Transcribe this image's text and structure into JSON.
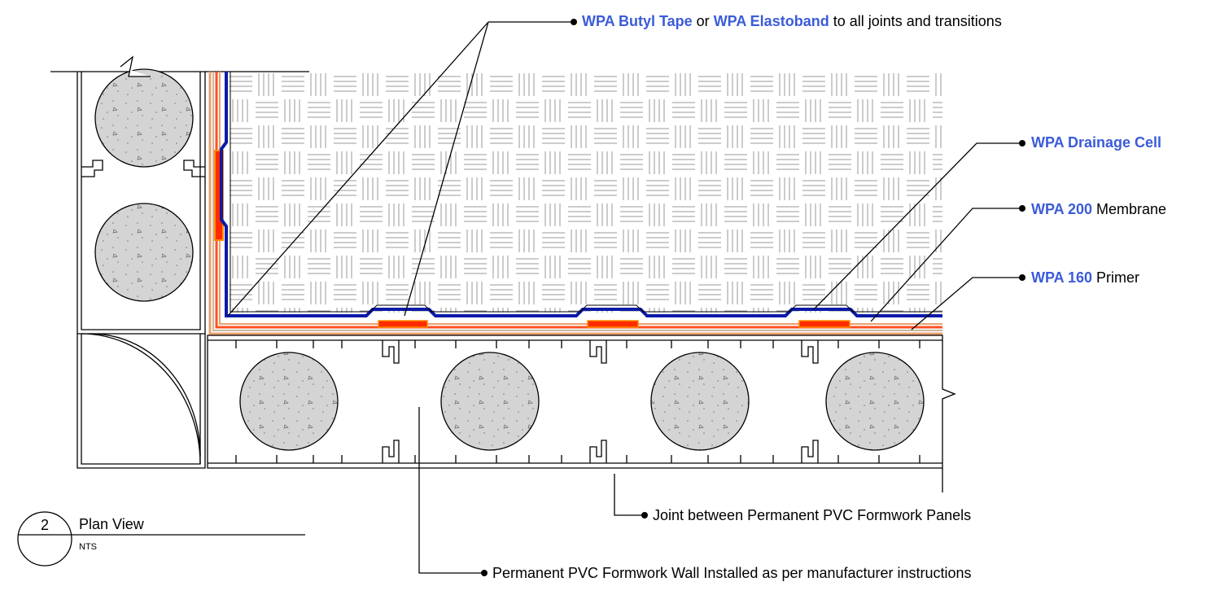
{
  "callouts": [
    {
      "segments": [
        {
          "text": "WPA Butyl Tape",
          "style": "product"
        },
        {
          "text": " or "
        },
        {
          "text": "WPA Elastoband",
          "style": "product"
        },
        {
          "text": " to all joints and transitions"
        }
      ]
    },
    {
      "segments": [
        {
          "text": "WPA Drainage Cell",
          "style": "product"
        }
      ]
    },
    {
      "segments": [
        {
          "text": "WPA 200",
          "style": "product"
        },
        {
          "text": " Membrane"
        }
      ]
    },
    {
      "segments": [
        {
          "text": "WPA 160",
          "style": "product"
        },
        {
          "text": " Primer"
        }
      ]
    },
    {
      "segments": [
        {
          "text": "Joint between Permanent PVC Formwork Panels"
        }
      ]
    },
    {
      "segments": [
        {
          "text": "Permanent PVC Formwork Wall Installed as per manufacturer instructions"
        }
      ]
    }
  ],
  "title_block": {
    "number": "2",
    "title": "Plan View",
    "scale": "NTS"
  }
}
